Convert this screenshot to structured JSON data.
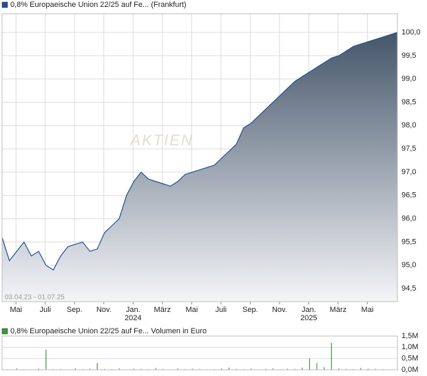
{
  "chart_data": [
    {
      "type": "line",
      "series": [
        {
          "name": "0,8% Europaeische Union 22/25 auf Fe... (Frankfurt)",
          "color": "#1f4e9c",
          "values": [
            95.6,
            95.1,
            95.3,
            95.5,
            95.2,
            95.3,
            95.0,
            94.9,
            95.2,
            95.4,
            95.45,
            95.5,
            95.3,
            95.35,
            95.7,
            95.85,
            96.0,
            96.5,
            96.8,
            97.0,
            96.85,
            96.8,
            96.75,
            96.7,
            96.8,
            96.95,
            97.0,
            97.05,
            97.1,
            97.15,
            97.3,
            97.45,
            97.6,
            97.95,
            98.05,
            98.2,
            98.35,
            98.5,
            98.65,
            98.8,
            98.95,
            99.05,
            99.15,
            99.25,
            99.35,
            99.45,
            99.5,
            99.6,
            99.7,
            99.75,
            99.8,
            99.85,
            99.9,
            99.95,
            100.0
          ]
        }
      ],
      "xlim": [
        0,
        54
      ],
      "ylim": [
        94.22,
        100.4
      ],
      "yticks": [
        {
          "value": 94.5,
          "label": "94,5"
        },
        {
          "value": 95.0,
          "label": "95,0"
        },
        {
          "value": 95.5,
          "label": "95,5"
        },
        {
          "value": 96.0,
          "label": "96,0"
        },
        {
          "value": 96.5,
          "label": "96,5"
        },
        {
          "value": 97.0,
          "label": "97,0"
        },
        {
          "value": 97.5,
          "label": "97,5"
        },
        {
          "value": 98.0,
          "label": "98,0"
        },
        {
          "value": 98.5,
          "label": "98,5"
        },
        {
          "value": 99.0,
          "label": "99,0"
        },
        {
          "value": 99.5,
          "label": "99,5"
        },
        {
          "value": 100.0,
          "label": "100,0"
        }
      ],
      "xticks": [
        {
          "value": 1.9,
          "label": "Mai"
        },
        {
          "value": 5.9,
          "label": "Juli"
        },
        {
          "value": 9.9,
          "label": "Sep."
        },
        {
          "value": 13.9,
          "label": "Nov."
        },
        {
          "value": 17.9,
          "label": "Jan."
        },
        {
          "value": 21.9,
          "label": "März"
        },
        {
          "value": 25.9,
          "label": "Mai"
        },
        {
          "value": 29.9,
          "label": "Juli"
        },
        {
          "value": 33.9,
          "label": "Sep."
        },
        {
          "value": 37.9,
          "label": "Nov."
        },
        {
          "value": 41.9,
          "label": "Jan."
        },
        {
          "value": 45.9,
          "label": "März"
        },
        {
          "value": 49.9,
          "label": "Mai"
        }
      ],
      "year_labels": [
        {
          "value": 17.9,
          "label": "2024"
        },
        {
          "value": 41.9,
          "label": "2025"
        }
      ],
      "date_range": "03.04.23 - 01.07.25",
      "watermark": "AKTIEN",
      "grid": true
    },
    {
      "type": "bar",
      "series": [
        {
          "name": "0,8% Europaeische Union 22/25 auf Fe... Volumen in Euro",
          "color": "#3a9a3a",
          "values": [
            40000,
            20000,
            60000,
            30000,
            20000,
            50000,
            900000,
            30000,
            40000,
            20000,
            60000,
            30000,
            50000,
            300000,
            40000,
            30000,
            60000,
            20000,
            50000,
            40000,
            30000,
            80000,
            40000,
            20000,
            60000,
            30000,
            50000,
            40000,
            20000,
            30000,
            60000,
            100000,
            40000,
            30000,
            50000,
            20000,
            40000,
            60000,
            30000,
            50000,
            40000,
            100000,
            500000,
            300000,
            120000,
            1200000,
            60000,
            40000,
            30000,
            80000,
            50000,
            40000,
            30000,
            20000,
            40000
          ]
        }
      ],
      "xlim": [
        0,
        54
      ],
      "ylim": [
        0,
        1500000
      ],
      "yticks": [
        {
          "value": 0,
          "label": "0,0M"
        },
        {
          "value": 500000,
          "label": "0,5M"
        },
        {
          "value": 1000000,
          "label": "1,0M"
        },
        {
          "value": 1500000,
          "label": "1,5M"
        }
      ],
      "grid": true
    }
  ]
}
